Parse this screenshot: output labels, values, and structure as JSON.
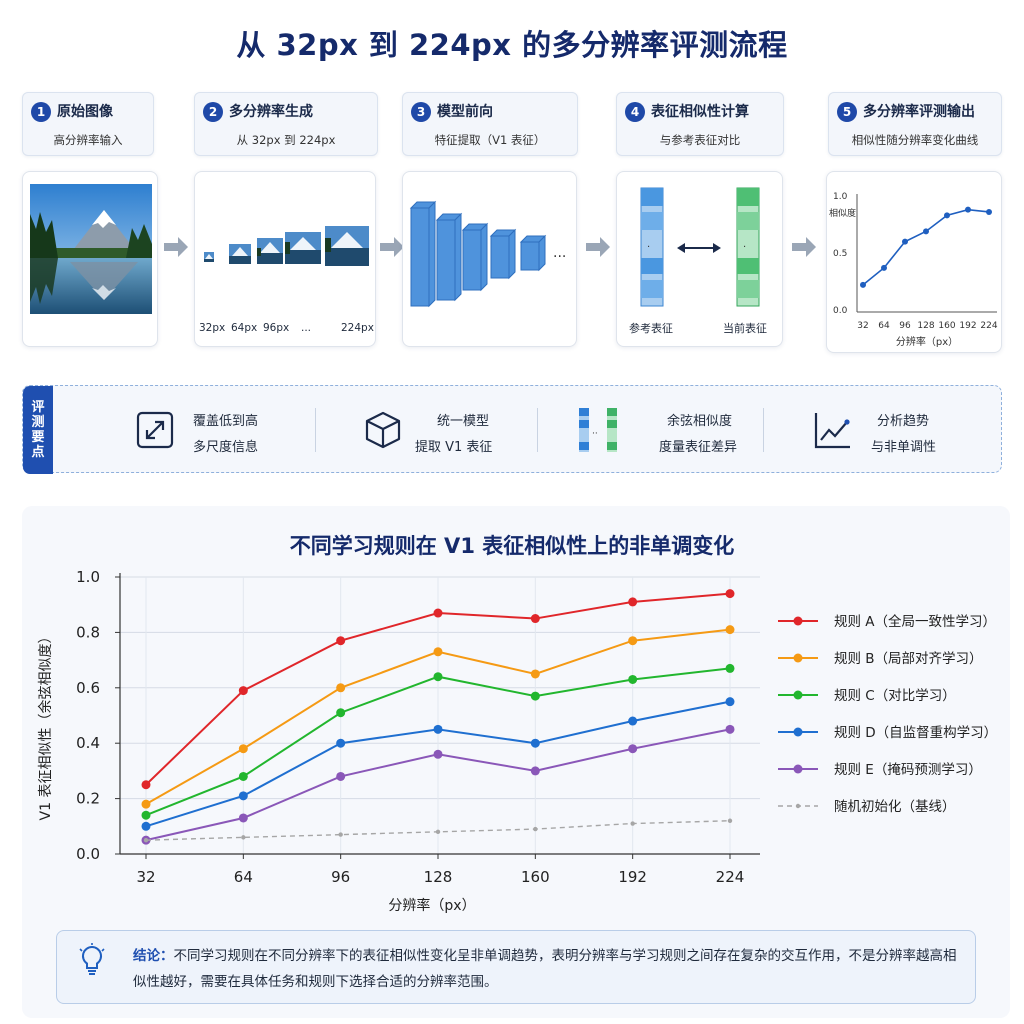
{
  "title": "从 32px 到 224px 的多分辨率评测流程",
  "steps": [
    {
      "num": "1",
      "title": "原始图像",
      "sub": "高分辨率输入"
    },
    {
      "num": "2",
      "title": "多分辨率生成",
      "sub": "从 32px 到 224px"
    },
    {
      "num": "3",
      "title": "模型前向",
      "sub": "特征提取（V1 表征）"
    },
    {
      "num": "4",
      "title": "表征相似性计算",
      "sub": "与参考表征对比"
    },
    {
      "num": "5",
      "title": "多分辨率评测输出",
      "sub": "相似性随分辨率变化曲线"
    }
  ],
  "panel2": {
    "labels": [
      "32px",
      "64px",
      "96px",
      "...",
      "224px"
    ]
  },
  "panel4": {
    "ref_label": "参考表征",
    "cur_label": "当前表征"
  },
  "panel5": {
    "ylabel": "相似度",
    "xlabel": "分辨率（px）",
    "x": [
      "32",
      "64",
      "96",
      "128",
      "160",
      "192",
      "224"
    ],
    "y_ticks": [
      "0.0",
      "0.5",
      "1.0"
    ],
    "values": [
      0.22,
      0.37,
      0.6,
      0.69,
      0.83,
      0.88,
      0.86
    ]
  },
  "features": {
    "tab": "评测要点",
    "items": [
      {
        "icon": "expand-icon",
        "line1": "覆盖低到高",
        "line2": "多尺度信息"
      },
      {
        "icon": "cube-icon",
        "line1": "统一模型",
        "line2": "提取 V1 表征"
      },
      {
        "icon": "vector-compare-icon",
        "line1": "余弦相似度",
        "line2": "度量表征差异"
      },
      {
        "icon": "trend-chart-icon",
        "line1": "分析趋势",
        "line2": "与非单调性"
      }
    ]
  },
  "chart_data": {
    "type": "line",
    "title": "不同学习规则在 V1 表征相似性上的非单调变化",
    "xlabel": "分辨率（px）",
    "ylabel": "V1 表征相似性（余弦相似度）",
    "x": [
      32,
      64,
      96,
      128,
      160,
      192,
      224
    ],
    "ylim": [
      0.0,
      1.0
    ],
    "y_ticks": [
      "0.0",
      "0.2",
      "0.4",
      "0.6",
      "0.8",
      "1.0"
    ],
    "legend_position": "right",
    "series": [
      {
        "name": "规则 A（全局一致性学习）",
        "color": "#e0262a",
        "dash": false,
        "values": [
          0.25,
          0.59,
          0.77,
          0.87,
          0.85,
          0.91,
          0.94
        ]
      },
      {
        "name": "规则 B（局部对齐学习）",
        "color": "#f59a14",
        "dash": false,
        "values": [
          0.18,
          0.38,
          0.6,
          0.73,
          0.65,
          0.77,
          0.81
        ]
      },
      {
        "name": "规则 C（对比学习）",
        "color": "#22b62e",
        "dash": false,
        "values": [
          0.14,
          0.28,
          0.51,
          0.64,
          0.57,
          0.63,
          0.67
        ]
      },
      {
        "name": "规则 D（自监督重构学习）",
        "color": "#1f6fd0",
        "dash": false,
        "values": [
          0.1,
          0.21,
          0.4,
          0.45,
          0.4,
          0.48,
          0.55
        ]
      },
      {
        "name": "规则 E（掩码预测学习）",
        "color": "#8a57b8",
        "dash": false,
        "values": [
          0.05,
          0.13,
          0.28,
          0.36,
          0.3,
          0.38,
          0.45
        ]
      },
      {
        "name": "随机初始化（基线）",
        "color": "#a6a6a6",
        "dash": true,
        "values": [
          0.05,
          0.06,
          0.07,
          0.08,
          0.09,
          0.11,
          0.12
        ]
      }
    ]
  },
  "conclusion": {
    "label": "结论：",
    "text": "不同学习规则在不同分辨率下的表征相似性变化呈非单调趋势，表明分辨率与学习规则之间存在复杂的交互作用，不是分辨率越高相似性越好，需要在具体任务和规则下选择合适的分辨率范围。"
  }
}
